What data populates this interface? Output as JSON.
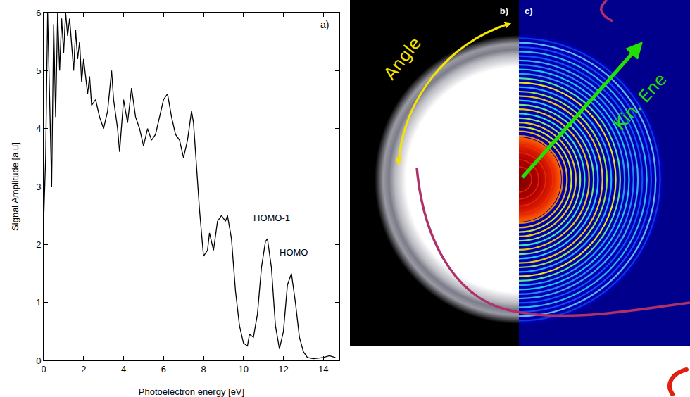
{
  "chart_data": {
    "type": "line",
    "panel_label": "a)",
    "x_label": "Photoelectron energy [eV]",
    "y_label": "Signal Amplitude [a.u]",
    "color": "#000000",
    "xlim": [
      0,
      14.8
    ],
    "xticks": [
      0,
      2,
      4,
      6,
      8,
      10,
      12,
      14
    ],
    "ylim": [
      0,
      6
    ],
    "yticks": [
      0,
      1,
      2,
      3,
      4,
      5,
      6
    ],
    "grid": false,
    "x": [
      0.0,
      0.1,
      0.2,
      0.3,
      0.4,
      0.5,
      0.6,
      0.7,
      0.8,
      0.9,
      1.0,
      1.1,
      1.2,
      1.3,
      1.4,
      1.5,
      1.6,
      1.7,
      1.8,
      1.9,
      2.0,
      2.2,
      2.3,
      2.4,
      2.6,
      2.8,
      3.0,
      3.2,
      3.4,
      3.5,
      3.7,
      3.8,
      4.0,
      4.2,
      4.4,
      4.6,
      4.8,
      5.0,
      5.2,
      5.4,
      5.6,
      5.8,
      6.0,
      6.2,
      6.4,
      6.6,
      6.8,
      7.0,
      7.2,
      7.4,
      7.5,
      7.6,
      7.8,
      8.0,
      8.2,
      8.3,
      8.5,
      8.7,
      8.9,
      9.1,
      9.2,
      9.4,
      9.6,
      9.8,
      10.0,
      10.2,
      10.3,
      10.5,
      10.7,
      10.9,
      11.1,
      11.2,
      11.4,
      11.6,
      11.8,
      12.0,
      12.2,
      12.4,
      12.6,
      12.8,
      13.0,
      13.2,
      13.5,
      14.0,
      14.3,
      14.6
    ],
    "values": [
      2.4,
      3.5,
      6.0,
      4.5,
      3.0,
      5.8,
      4.2,
      6.0,
      5.0,
      5.9,
      5.3,
      6.0,
      5.6,
      5.9,
      5.5,
      5.0,
      5.7,
      5.2,
      5.5,
      4.8,
      5.2,
      4.6,
      4.9,
      4.4,
      4.5,
      4.2,
      4.0,
      4.3,
      5.0,
      4.5,
      4.0,
      3.6,
      4.5,
      4.1,
      4.7,
      4.2,
      4.0,
      3.7,
      4.0,
      3.8,
      3.9,
      4.2,
      4.5,
      4.6,
      4.2,
      3.9,
      3.8,
      3.5,
      3.8,
      4.3,
      4.1,
      3.6,
      2.6,
      1.8,
      1.9,
      2.2,
      1.9,
      2.4,
      2.5,
      2.4,
      2.5,
      2.1,
      1.2,
      0.6,
      0.3,
      0.25,
      0.45,
      0.4,
      0.8,
      1.6,
      2.05,
      2.1,
      1.6,
      0.6,
      0.2,
      0.5,
      1.3,
      1.5,
      1.0,
      0.4,
      0.15,
      0.05,
      0.03,
      0.05,
      0.08,
      0.05
    ],
    "annotations": [
      {
        "text": "HOMO-1",
        "x": 11.4,
        "y": 2.35
      },
      {
        "text": "HOMO",
        "x": 12.5,
        "y": 1.75
      }
    ]
  },
  "panels": {
    "b": {
      "label": "b)",
      "arrow_label": "Angle"
    },
    "c": {
      "label": "c)",
      "arrow_label": "Kin. Ene"
    }
  }
}
